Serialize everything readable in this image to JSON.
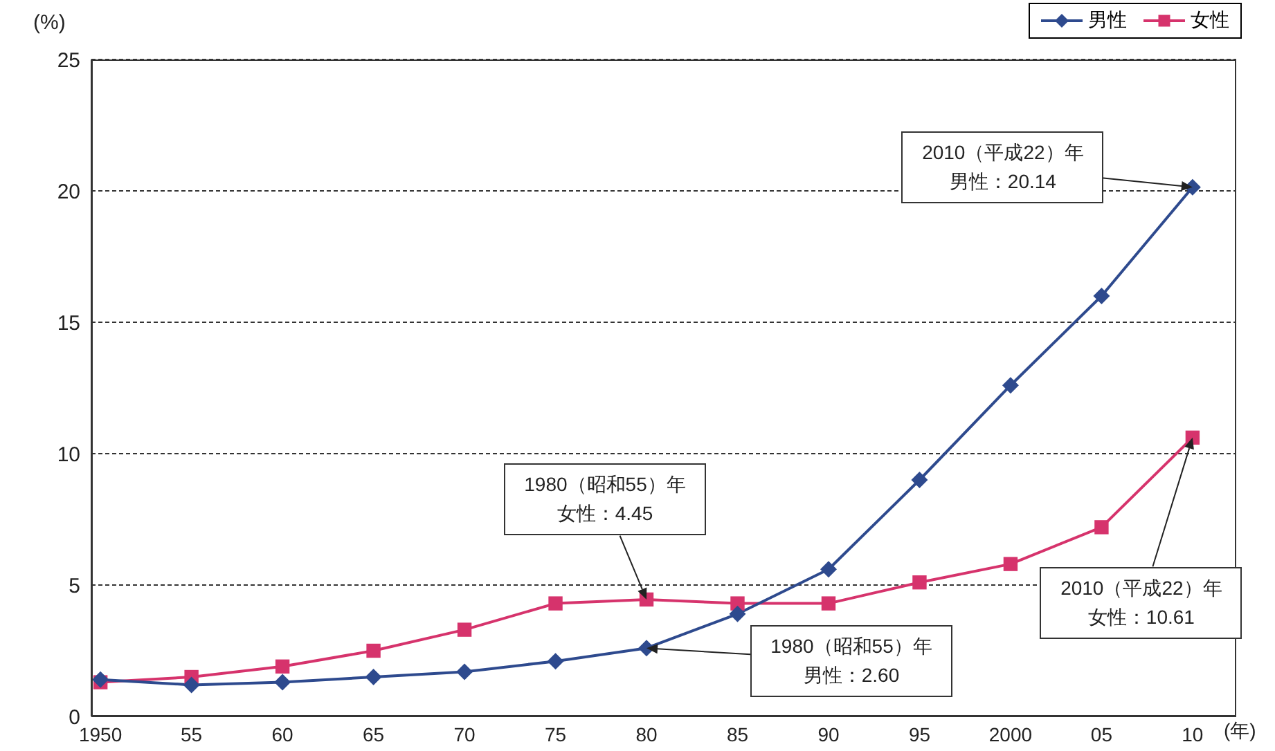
{
  "chart_data": {
    "type": "line",
    "ylabel": "(%)",
    "xlabel": "(年)",
    "categories": [
      "1950",
      "55",
      "60",
      "65",
      "70",
      "75",
      "80",
      "85",
      "90",
      "95",
      "2000",
      "05",
      "10"
    ],
    "series": [
      {
        "name": "男性",
        "color": "#2e4a8e",
        "marker": "diamond",
        "values": [
          1.4,
          1.2,
          1.3,
          1.5,
          1.7,
          2.1,
          2.6,
          3.9,
          5.6,
          9.0,
          12.6,
          16.0,
          20.14
        ]
      },
      {
        "name": "女性",
        "color": "#d6336c",
        "marker": "square",
        "values": [
          1.3,
          1.5,
          1.9,
          2.5,
          3.3,
          4.3,
          4.45,
          4.3,
          4.3,
          5.1,
          5.8,
          7.2,
          10.61
        ]
      }
    ],
    "ylim": [
      0,
      25
    ],
    "yticks": [
      0,
      5,
      10,
      15,
      20,
      25
    ],
    "grid": "y",
    "legend": "top right",
    "line_style": "solid",
    "annotations": [
      {
        "text": "2010（平成22）年男性：20.14",
        "x": "10",
        "y": 20.14
      },
      {
        "text": "1980（昭和55）年女性：4.45",
        "x": "80",
        "y": 4.45
      },
      {
        "text": "1980（昭和55）年男性：2.60",
        "x": "80",
        "y": 2.6
      },
      {
        "text": "2010（平成22）年女性：10.61",
        "x": "10",
        "y": 10.61
      }
    ]
  }
}
